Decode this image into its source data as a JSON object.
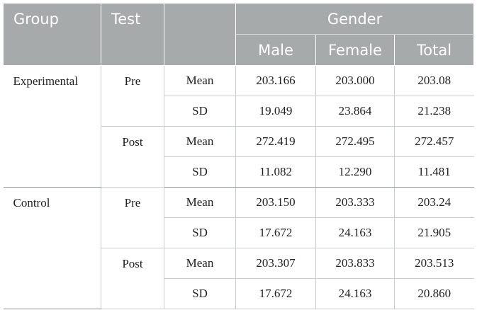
{
  "header": {
    "group": "Group",
    "test": "Test",
    "gender": "Gender",
    "male": "Male",
    "female": "Female",
    "total": "Total"
  },
  "rows": {
    "exp_pre_mean": {
      "group": "Experimental",
      "test": "Pre",
      "stat": "Mean",
      "male": "203.166",
      "female": "203.000",
      "total": "203.08"
    },
    "exp_pre_sd": {
      "stat": "SD",
      "male": "19.049",
      "female": "23.864",
      "total": "21.238"
    },
    "exp_post_mean": {
      "test": "Post",
      "stat": "Mean",
      "male": "272.419",
      "female": "272.495",
      "total": "272.457"
    },
    "exp_post_sd": {
      "stat": "SD",
      "male": "11.082",
      "female": "12.290",
      "total": "11.481"
    },
    "con_pre_mean": {
      "group": "Control",
      "test": "Pre",
      "stat": "Mean",
      "male": "203.150",
      "female": "203.333",
      "total": "203.24"
    },
    "con_pre_sd": {
      "stat": "SD",
      "male": "17.672",
      "female": "24.163",
      "total": "21.905"
    },
    "con_post_mean": {
      "test": "Post",
      "stat": "Mean",
      "male": "203.307",
      "female": "203.833",
      "total": "203.513"
    },
    "con_post_sd": {
      "stat": "SD",
      "male": "17.672",
      "female": "24.163",
      "total": "20.860"
    }
  }
}
